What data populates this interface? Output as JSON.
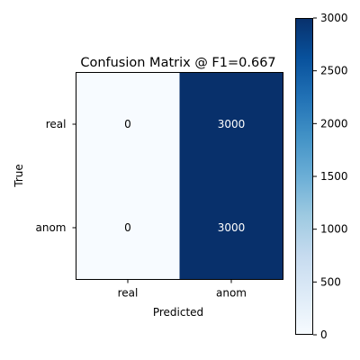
{
  "chart_data": {
    "type": "heatmap",
    "title": "Confusion Matrix @ F1=0.667",
    "xlabel": "Predicted",
    "ylabel": "True",
    "x_categories": [
      "real",
      "anom"
    ],
    "y_categories": [
      "real",
      "anom"
    ],
    "values": [
      [
        0,
        3000
      ],
      [
        0,
        3000
      ]
    ],
    "colorscale": "Blues",
    "color_low": "#f7fbff",
    "color_high": "#08306b",
    "colorbar": {
      "range": [
        0,
        3000
      ],
      "ticks": [
        "0",
        "500",
        "1000",
        "1500",
        "2000",
        "2500",
        "3000"
      ],
      "placement": "right"
    },
    "grid": false
  }
}
